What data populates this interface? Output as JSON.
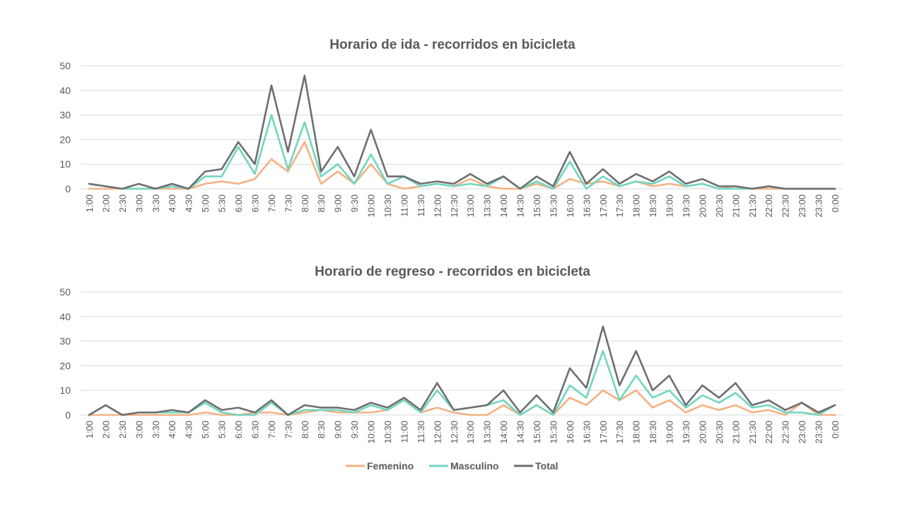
{
  "chart_data": [
    {
      "type": "line",
      "title": "Horario de ida - recorridos en bicicleta",
      "xlabel": "",
      "ylabel": "",
      "ylim": [
        0,
        50
      ],
      "yticks": [
        "0",
        "10",
        "20",
        "30",
        "40",
        "50"
      ],
      "grid": true,
      "categories": [
        "1:00",
        "2:00",
        "2:30",
        "3:00",
        "3:30",
        "4:00",
        "4:30",
        "5:00",
        "5:30",
        "6:00",
        "6:30",
        "7:00",
        "7:30",
        "8:00",
        "8:30",
        "9:00",
        "9:30",
        "10:00",
        "10:30",
        "11:00",
        "11:30",
        "12:00",
        "12:30",
        "13:00",
        "13:30",
        "14:00",
        "14:30",
        "15:00",
        "15:30",
        "16:00",
        "16:30",
        "17:00",
        "17:30",
        "18:00",
        "18:30",
        "19:00",
        "19:30",
        "20:00",
        "20:30",
        "21:00",
        "21:30",
        "22:00",
        "22:30",
        "23:00",
        "23:30",
        "0:00"
      ],
      "series": [
        {
          "name": "Femenino",
          "color": "#f4b183",
          "values": [
            0,
            0,
            0,
            0,
            0,
            0,
            0,
            2,
            3,
            2,
            4,
            12,
            7,
            19,
            2,
            7,
            2,
            10,
            2,
            0,
            1,
            2,
            1,
            4,
            1,
            0,
            0,
            2,
            0,
            4,
            2,
            3,
            1,
            3,
            1,
            2,
            1,
            2,
            0,
            1,
            0,
            0,
            0,
            0,
            0,
            0
          ]
        },
        {
          "name": "Masculino",
          "color": "#70d6c0",
          "values": [
            2,
            1,
            0,
            0,
            0,
            1,
            0,
            5,
            5,
            17,
            6,
            30,
            8,
            27,
            5,
            10,
            2,
            14,
            2,
            5,
            1,
            2,
            1,
            2,
            1,
            5,
            0,
            3,
            0,
            11,
            0,
            5,
            1,
            3,
            2,
            5,
            1,
            2,
            0,
            0,
            0,
            1,
            0,
            0,
            0,
            0
          ]
        },
        {
          "name": "Total",
          "color": "#6e6e6e",
          "values": [
            2,
            1,
            0,
            2,
            0,
            2,
            0,
            7,
            8,
            19,
            10,
            42,
            15,
            46,
            7,
            17,
            5,
            24,
            5,
            5,
            2,
            3,
            2,
            6,
            2,
            5,
            0,
            5,
            1,
            15,
            2,
            8,
            2,
            6,
            3,
            7,
            2,
            4,
            1,
            1,
            0,
            1,
            0,
            0,
            0,
            0
          ]
        }
      ]
    },
    {
      "type": "line",
      "title": "Horario de regreso - recorridos en bicicleta",
      "xlabel": "",
      "ylabel": "",
      "ylim": [
        0,
        50
      ],
      "yticks": [
        "0",
        "10",
        "20",
        "30",
        "40",
        "50"
      ],
      "grid": true,
      "categories": [
        "1:00",
        "2:00",
        "2:30",
        "3:00",
        "3:30",
        "4:00",
        "4:30",
        "5:00",
        "5:30",
        "6:00",
        "6:30",
        "7:00",
        "7:30",
        "8:00",
        "8:30",
        "9:00",
        "9:30",
        "10:00",
        "10:30",
        "11:00",
        "11:30",
        "12:00",
        "12:30",
        "13:00",
        "13:30",
        "14:00",
        "14:30",
        "15:00",
        "15:30",
        "16:00",
        "16:30",
        "17:00",
        "17:30",
        "18:00",
        "18:30",
        "19:00",
        "19:30",
        "20:00",
        "20:30",
        "21:00",
        "21:30",
        "22:00",
        "22:30",
        "23:00",
        "23:30",
        "0:00"
      ],
      "series": [
        {
          "name": "Femenino",
          "color": "#f4b183",
          "values": [
            0,
            0,
            0,
            0,
            0,
            0,
            0,
            1,
            0,
            0,
            1,
            1,
            0,
            1,
            2,
            1,
            1,
            1,
            2,
            6,
            1,
            3,
            1,
            0,
            0,
            4,
            0,
            4,
            0,
            7,
            4,
            10,
            6,
            10,
            3,
            6,
            1,
            4,
            2,
            4,
            1,
            2,
            0,
            5,
            0,
            0
          ]
        },
        {
          "name": "Masculino",
          "color": "#70d6c0",
          "values": [
            0,
            4,
            0,
            1,
            1,
            1,
            1,
            5,
            1,
            0,
            0,
            5,
            0,
            2,
            2,
            2,
            1,
            4,
            2,
            6,
            1,
            10,
            2,
            3,
            4,
            6,
            0,
            4,
            0,
            12,
            7,
            26,
            6,
            16,
            7,
            10,
            3,
            8,
            5,
            9,
            3,
            4,
            1,
            1,
            0,
            4
          ]
        },
        {
          "name": "Total",
          "color": "#6e6e6e",
          "values": [
            0,
            4,
            0,
            1,
            1,
            2,
            1,
            6,
            2,
            3,
            1,
            6,
            0,
            4,
            3,
            3,
            2,
            5,
            3,
            7,
            2,
            13,
            2,
            3,
            4,
            10,
            1,
            8,
            1,
            19,
            11,
            36,
            12,
            26,
            10,
            16,
            4,
            12,
            7,
            13,
            4,
            6,
            2,
            5,
            1,
            4
          ]
        }
      ]
    }
  ],
  "legend": {
    "placement": "bottom-center",
    "items": [
      {
        "name": "Femenino",
        "color": "#f4b183"
      },
      {
        "name": "Masculino",
        "color": "#70d6c0"
      },
      {
        "name": "Total",
        "color": "#6e6e6e"
      }
    ]
  }
}
